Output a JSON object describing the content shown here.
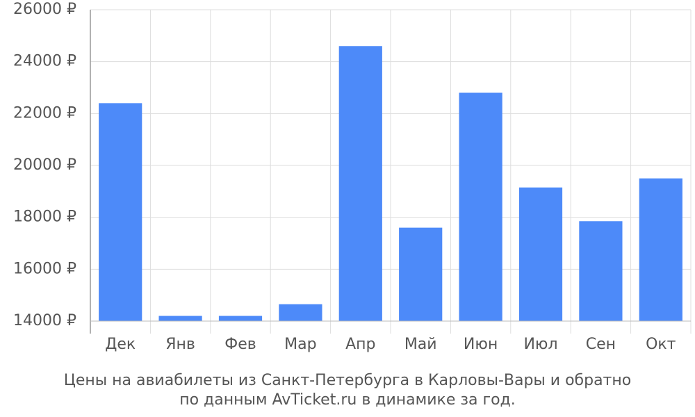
{
  "chart_data": {
    "type": "bar",
    "title": [
      "Цены на авиабилеты из Санкт-Петербурга в Карловы-Вары и обратно",
      "по данным AvTicket.ru в динамике за год."
    ],
    "categories": [
      "Дек",
      "Янв",
      "Фев",
      "Мар",
      "Апр",
      "Май",
      "Июн",
      "Июл",
      "Сен",
      "Окт"
    ],
    "values": [
      22400,
      14200,
      14200,
      14650,
      24600,
      17600,
      22800,
      19150,
      17850,
      19500
    ],
    "color": "#4d8af9",
    "ylim": [
      14000,
      26000
    ],
    "yticks": [
      {
        "value": 14000,
        "label": "14000 ₽"
      },
      {
        "value": 16000,
        "label": "16000 ₽"
      },
      {
        "value": 18000,
        "label": "18000 ₽"
      },
      {
        "value": 20000,
        "label": "20000 ₽"
      },
      {
        "value": 22000,
        "label": "22000 ₽"
      },
      {
        "value": 24000,
        "label": "24000 ₽"
      },
      {
        "value": 26000,
        "label": "26000 ₽"
      }
    ],
    "grid": true
  }
}
